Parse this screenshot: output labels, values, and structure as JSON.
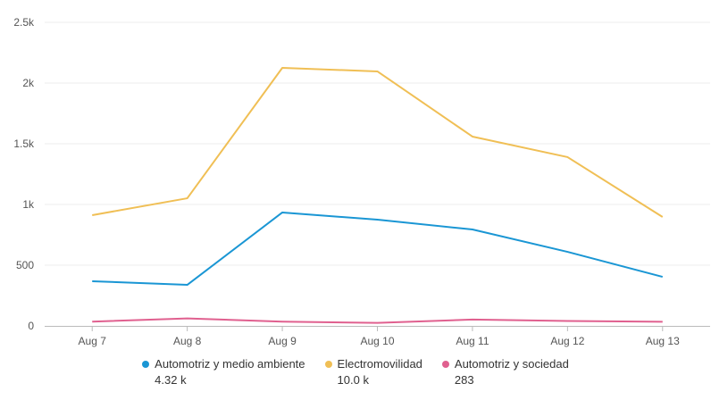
{
  "chart_data": {
    "type": "line",
    "title": "",
    "xlabel": "",
    "ylabel": "",
    "categories": [
      "Aug 7",
      "Aug 8",
      "Aug 9",
      "Aug 10",
      "Aug 11",
      "Aug 12",
      "Aug 13"
    ],
    "ylim": [
      0,
      2500
    ],
    "yticks": [
      0,
      500,
      1000,
      1500,
      2000,
      2500
    ],
    "ytick_labels": [
      "0",
      "500",
      "1k",
      "1.5k",
      "2k",
      "2.5k"
    ],
    "grid": true,
    "legend_position": "bottom",
    "series": [
      {
        "name": "Automotriz y medio ambiente",
        "total": "4.32 k",
        "color": "#1a96d4",
        "values": [
          368,
          338,
          934,
          875,
          794,
          610,
          404
        ]
      },
      {
        "name": "Electromovilidad",
        "total": "10.0 k",
        "color": "#f0bf55",
        "values": [
          912,
          1051,
          2125,
          2096,
          1559,
          1390,
          897
        ]
      },
      {
        "name": "Automotriz y sociedad",
        "total": "283",
        "color": "#e0608f",
        "values": [
          35,
          62,
          35,
          25,
          52,
          40,
          34
        ]
      }
    ]
  }
}
